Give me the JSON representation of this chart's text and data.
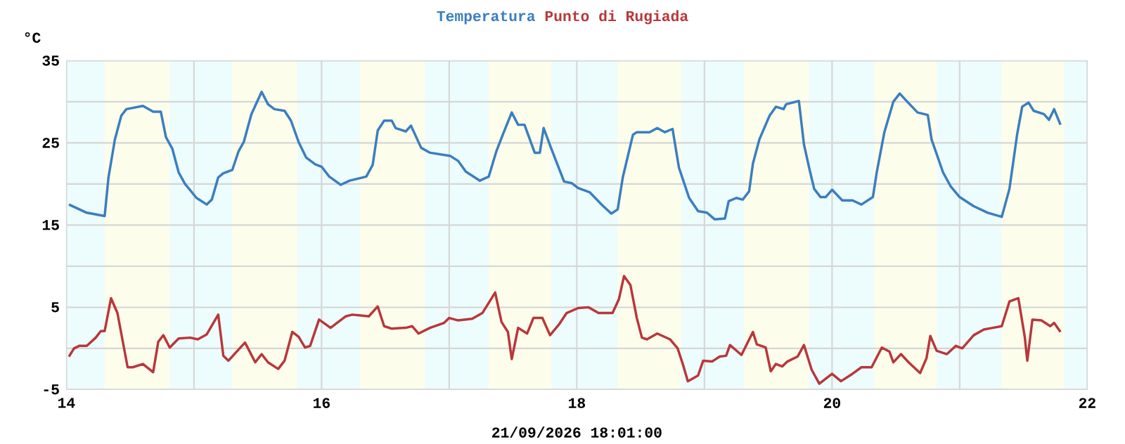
{
  "chart_data": {
    "type": "line",
    "ylabel": "°C",
    "xlabel": "21/09/2026 18:01:00",
    "xlim": [
      14,
      22
    ],
    "ylim": [
      -5,
      35
    ],
    "xticks": [
      14,
      {
        "value": 15,
        "label": null
      },
      16,
      {
        "value": 17,
        "label": null
      },
      18,
      {
        "value": 19,
        "label": null
      },
      20,
      {
        "value": 21,
        "label": null
      },
      22
    ],
    "yticks": [
      -5,
      {
        "value": 0,
        "label": null
      },
      5,
      {
        "value": 10,
        "label": null
      },
      15,
      {
        "value": 20,
        "label": null
      },
      25,
      {
        "value": 30,
        "label": null
      },
      35
    ],
    "grid": true,
    "legend": "top",
    "marker": "none",
    "line_style": "solid",
    "bands": [
      {
        "axis": "x",
        "from": 14,
        "to": 14.3,
        "color": "#edfcfc"
      },
      {
        "axis": "x",
        "from": 14.3,
        "to": 14.81,
        "color": "#fdfdec"
      },
      {
        "axis": "x",
        "from": 14.81,
        "to": 15.3,
        "color": "#edfcfc"
      },
      {
        "axis": "x",
        "from": 15.3,
        "to": 15.81,
        "color": "#fdfdec"
      },
      {
        "axis": "x",
        "from": 15.81,
        "to": 16.3,
        "color": "#edfcfc"
      },
      {
        "axis": "x",
        "from": 16.3,
        "to": 16.81,
        "color": "#fdfdec"
      },
      {
        "axis": "x",
        "from": 16.81,
        "to": 17.31,
        "color": "#edfcfc"
      },
      {
        "axis": "x",
        "from": 17.31,
        "to": 17.8,
        "color": "#fdfdec"
      },
      {
        "axis": "x",
        "from": 17.8,
        "to": 18.32,
        "color": "#edfcfc"
      },
      {
        "axis": "x",
        "from": 18.32,
        "to": 18.82,
        "color": "#fdfdec"
      },
      {
        "axis": "x",
        "from": 18.82,
        "to": 19.31,
        "color": "#edfcfc"
      },
      {
        "axis": "x",
        "from": 19.31,
        "to": 19.82,
        "color": "#fdfdec"
      },
      {
        "axis": "x",
        "from": 19.82,
        "to": 20.33,
        "color": "#edfcfc"
      },
      {
        "axis": "x",
        "from": 20.33,
        "to": 20.82,
        "color": "#fdfdec"
      },
      {
        "axis": "x",
        "from": 20.82,
        "to": 21.33,
        "color": "#edfcfc"
      },
      {
        "axis": "x",
        "from": 21.33,
        "to": 21.82,
        "color": "#fdfdec"
      },
      {
        "axis": "x",
        "from": 21.82,
        "to": 22,
        "color": "#edfcfc"
      }
    ],
    "series": [
      {
        "name": "Temperatura",
        "color": "#3a7ebf",
        "x": [
          14.02,
          14.16,
          14.3,
          14.33,
          14.38,
          14.43,
          14.47,
          14.6,
          14.68,
          14.74,
          14.78,
          14.83,
          14.88,
          14.93,
          15.02,
          15.1,
          15.14,
          15.19,
          15.23,
          15.3,
          15.35,
          15.39,
          15.45,
          15.53,
          15.58,
          15.63,
          15.71,
          15.76,
          15.82,
          15.88,
          15.95,
          16.0,
          16.06,
          16.15,
          16.22,
          16.35,
          16.4,
          16.44,
          16.49,
          16.55,
          16.58,
          16.66,
          16.7,
          16.78,
          16.85,
          17.01,
          17.07,
          17.13,
          17.24,
          17.31,
          17.37,
          17.42,
          17.49,
          17.54,
          17.59,
          17.67,
          17.71,
          17.74,
          17.8,
          17.9,
          17.96,
          18.01,
          18.1,
          18.2,
          18.27,
          18.32,
          18.36,
          18.44,
          18.47,
          18.57,
          18.63,
          18.69,
          18.75,
          18.8,
          18.88,
          18.95,
          19.02,
          19.08,
          19.16,
          19.19,
          19.25,
          19.3,
          19.35,
          19.38,
          19.43,
          19.51,
          19.56,
          19.62,
          19.64,
          19.74,
          19.78,
          19.82,
          19.86,
          19.91,
          19.95,
          20.0,
          20.08,
          20.16,
          20.23,
          20.32,
          20.35,
          20.41,
          20.48,
          20.53,
          20.59,
          20.67,
          20.75,
          20.78,
          20.87,
          20.93,
          21.0,
          21.11,
          21.22,
          21.33,
          21.39,
          21.45,
          21.49,
          21.54,
          21.58,
          21.66,
          21.7,
          21.74,
          21.79
        ],
        "values": [
          17.5,
          16.5,
          16.1,
          20.8,
          25.4,
          28.3,
          29.1,
          29.5,
          28.8,
          28.8,
          25.7,
          24.3,
          21.4,
          20.0,
          18.3,
          17.5,
          18.1,
          20.8,
          21.3,
          21.7,
          24.0,
          25.1,
          28.5,
          31.2,
          29.7,
          29.1,
          28.9,
          27.7,
          25.1,
          23.2,
          22.4,
          22.1,
          20.9,
          19.9,
          20.4,
          20.9,
          22.3,
          26.5,
          27.7,
          27.7,
          26.8,
          26.4,
          27.1,
          24.4,
          23.8,
          23.4,
          22.8,
          21.5,
          20.4,
          20.9,
          24.0,
          26.0,
          28.7,
          27.2,
          27.2,
          23.8,
          23.8,
          26.8,
          24.3,
          20.3,
          20.1,
          19.5,
          19.0,
          17.4,
          16.4,
          16.9,
          20.8,
          26.0,
          26.3,
          26.3,
          26.8,
          26.3,
          26.7,
          22.0,
          18.3,
          16.7,
          16.5,
          15.7,
          15.8,
          17.9,
          18.3,
          18.1,
          19.1,
          22.5,
          25.4,
          28.3,
          29.4,
          29.1,
          29.7,
          30.1,
          24.8,
          22.0,
          19.4,
          18.4,
          18.4,
          19.3,
          18.0,
          18.0,
          17.5,
          18.4,
          21.4,
          26.3,
          30.0,
          31.0,
          30.0,
          28.7,
          28.4,
          25.4,
          21.4,
          19.7,
          18.4,
          17.3,
          16.5,
          16.0,
          19.4,
          26.0,
          29.4,
          29.9,
          28.9,
          28.5,
          27.8,
          29.1,
          27.2
        ]
      },
      {
        "name": "Punto di Rugiada",
        "color": "#b8373a",
        "x": [
          14.02,
          14.06,
          14.1,
          14.16,
          14.23,
          14.27,
          14.3,
          14.35,
          14.4,
          14.48,
          14.52,
          14.6,
          14.68,
          14.72,
          14.76,
          14.81,
          14.88,
          14.97,
          15.03,
          15.1,
          15.19,
          15.23,
          15.27,
          15.34,
          15.4,
          15.48,
          15.53,
          15.58,
          15.66,
          15.71,
          15.77,
          15.82,
          15.87,
          15.91,
          15.98,
          16.07,
          16.19,
          16.24,
          16.37,
          16.44,
          16.49,
          16.55,
          16.66,
          16.71,
          16.76,
          16.85,
          16.96,
          17.0,
          17.07,
          17.18,
          17.26,
          17.36,
          17.41,
          17.46,
          17.49,
          17.54,
          17.61,
          17.66,
          17.73,
          17.79,
          17.86,
          17.92,
          18.01,
          18.09,
          18.17,
          18.28,
          18.33,
          18.37,
          18.42,
          18.47,
          18.51,
          18.55,
          18.63,
          18.73,
          18.79,
          18.83,
          18.87,
          18.95,
          18.99,
          19.06,
          19.12,
          19.17,
          19.2,
          19.29,
          19.38,
          19.41,
          19.48,
          19.52,
          19.56,
          19.61,
          19.65,
          19.73,
          19.78,
          19.84,
          19.9,
          20.0,
          20.07,
          20.15,
          20.23,
          20.31,
          20.39,
          20.45,
          20.48,
          20.54,
          20.6,
          20.69,
          20.74,
          20.77,
          20.82,
          20.9,
          20.97,
          21.02,
          21.11,
          21.19,
          21.26,
          21.33,
          21.39,
          21.46,
          21.51,
          21.53,
          21.57,
          21.64,
          21.71,
          21.74,
          21.79
        ],
        "values": [
          -1.0,
          0.0,
          0.3,
          0.3,
          1.3,
          2.1,
          2.1,
          6.1,
          4.3,
          -2.3,
          -2.3,
          -1.9,
          -2.9,
          0.8,
          1.6,
          0.1,
          1.2,
          1.3,
          1.1,
          1.7,
          4.1,
          -0.9,
          -1.5,
          -0.3,
          0.7,
          -1.7,
          -0.7,
          -1.7,
          -2.5,
          -1.5,
          2.0,
          1.4,
          0.1,
          0.3,
          3.5,
          2.5,
          3.9,
          4.1,
          3.9,
          5.1,
          2.7,
          2.4,
          2.5,
          2.7,
          1.8,
          2.5,
          3.1,
          3.7,
          3.4,
          3.6,
          4.3,
          6.8,
          3.2,
          2.0,
          -1.3,
          2.5,
          1.8,
          3.7,
          3.7,
          1.6,
          2.9,
          4.3,
          4.9,
          5.0,
          4.3,
          4.3,
          6.0,
          8.8,
          7.7,
          3.7,
          1.3,
          1.1,
          1.8,
          1.1,
          0.0,
          -1.9,
          -4.0,
          -3.3,
          -1.5,
          -1.6,
          -1.0,
          -0.9,
          0.4,
          -0.8,
          2.0,
          0.5,
          0.1,
          -2.8,
          -1.9,
          -2.2,
          -1.6,
          -1.0,
          0.4,
          -2.6,
          -4.3,
          -3.1,
          -4.0,
          -3.2,
          -2.3,
          -2.3,
          0.1,
          -0.4,
          -1.7,
          -0.7,
          -1.7,
          -3.0,
          -1.2,
          1.5,
          -0.3,
          -0.7,
          0.3,
          0.0,
          1.6,
          2.3,
          2.5,
          2.7,
          5.7,
          6.1,
          1.4,
          -1.5,
          3.5,
          3.4,
          2.7,
          3.1,
          2.0
        ]
      }
    ]
  }
}
